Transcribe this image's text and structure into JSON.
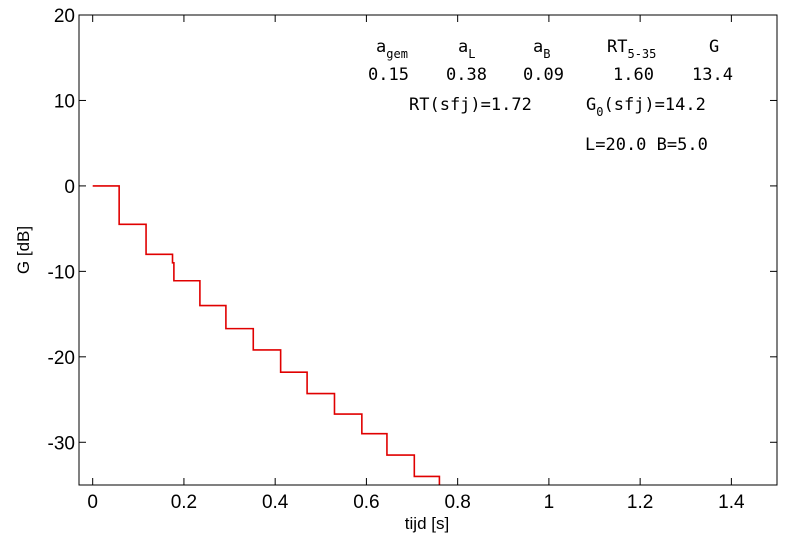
{
  "chart_data": {
    "type": "line",
    "xlabel": "tijd  [s]",
    "ylabel": "G  [dB]",
    "xlim": [
      -0.03,
      1.5
    ],
    "ylim": [
      -35,
      20
    ],
    "xticks": [
      0,
      0.2,
      0.4,
      0.6,
      0.8,
      1,
      1.2,
      1.4
    ],
    "xtick_labels": [
      "0",
      "0.2",
      "0.4",
      "0.6",
      "0.8",
      "1",
      "1.2",
      "1.4"
    ],
    "yticks": [
      -30,
      -20,
      -10,
      0,
      10,
      20
    ],
    "ytick_labels": [
      "-30",
      "-20",
      "-10",
      "0",
      "10",
      "20"
    ],
    "grid": false,
    "series": [
      {
        "color": "#000000",
        "step": true,
        "x": [
          0.0,
          0.0,
          0.0,
          0.0,
          0.0,
          0.0,
          0.0,
          0.0,
          0.0,
          0.0,
          0.0,
          0.0,
          0.0,
          0.0,
          0.0,
          0.0,
          0.0,
          0.0,
          0.0,
          0.0,
          0.0,
          0.0,
          0.0,
          0.0,
          0.0,
          0.0,
          0.0,
          0.0,
          0.0,
          0.0,
          0.0,
          0.0,
          0.0,
          0.0,
          0.0,
          0.0,
          0.0,
          0.0,
          0.0,
          0.0,
          0.0,
          0.0,
          0.0,
          0.0,
          0.0,
          0.0,
          0.0,
          0.0,
          0.0,
          0.0
        ],
        "y": [
          0.0,
          0.0,
          0.0,
          0.0,
          0.0,
          0.0,
          0.0,
          0.0,
          0.0,
          0.0,
          0.0,
          0.0,
          0.0,
          0.0,
          0.0,
          0.0,
          0.0,
          0.0,
          0.0,
          0.0,
          0.0,
          0.0,
          0.0,
          0.0,
          0.0,
          0.0,
          0.0,
          0.0,
          0.0,
          0.0,
          0.0,
          0.0,
          0.0,
          0.0,
          0.0,
          0.0,
          0.0,
          0.0,
          0.0,
          0.0,
          0.0,
          0.0,
          0.0,
          0.0,
          0.0,
          0.0,
          0.0,
          0.0,
          0.0,
          0.0
        ]
      },
      {
        "color": "#0000ff",
        "step": true,
        "x": [
          0.0,
          0.0,
          0.0,
          0.0,
          0.0,
          0.0,
          0.0,
          0.0,
          0.0,
          0.0,
          0.0,
          0.0,
          0.0,
          0.0,
          0.0,
          0.0,
          0.0,
          0.0,
          0.0,
          0.0,
          0.0,
          0.0,
          0.0,
          0.0,
          0.0,
          0.0,
          0.0,
          0.0,
          0.0,
          0.0,
          0.0,
          0.0,
          0.0,
          0.0,
          0.0,
          0.0,
          0.0,
          0.0,
          0.0,
          0.0,
          0.0,
          0.0,
          0.0,
          0.0,
          0.0,
          0.0,
          0.0,
          0.0,
          0.0,
          0.0
        ],
        "y": [
          0.0,
          0.0,
          0.0,
          0.0,
          0.0,
          0.0,
          0.0,
          0.0,
          0.0,
          0.0,
          0.0,
          0.0,
          0.0,
          0.0,
          0.0,
          0.0,
          0.0,
          0.0,
          0.0,
          0.0,
          0.0,
          0.0,
          0.0,
          0.0,
          0.0,
          0.0,
          0.0,
          0.0,
          0.0,
          0.0,
          0.0,
          0.0,
          0.0,
          0.0,
          0.0,
          0.0,
          0.0,
          0.0,
          0.0,
          0.0,
          0.0,
          0.0,
          0.0,
          0.0,
          0.0,
          0.0,
          0.0,
          0.0,
          0.0,
          0.0
        ]
      },
      {
        "color": "#e00000",
        "step": true,
        "x": [
          0,
          0.058,
          0.058,
          0.117,
          0.117,
          0.175,
          0.175,
          0.178,
          0.178,
          0.235,
          0.235,
          0.292,
          0.292,
          0.352,
          0.352,
          0.412,
          0.412,
          0.47,
          0.47,
          0.53,
          0.53,
          0.59,
          0.59,
          0.645,
          0.645,
          0.705,
          0.705,
          0.76,
          0.76
        ],
        "y": [
          0,
          0,
          -4.5,
          -4.5,
          -8,
          -8,
          -9,
          -9,
          -11.1,
          -11.1,
          -14,
          -14,
          -16.7,
          -16.7,
          -19.2,
          -19.2,
          -21.8,
          -21.8,
          -24.3,
          -24.3,
          -26.7,
          -26.7,
          -29,
          -29,
          -31.5,
          -31.5,
          -34,
          -34,
          -35
        ]
      }
    ],
    "annotations": {
      "headers": [
        {
          "base": "a",
          "sub": "gem"
        },
        {
          "base": "a",
          "sub": "L"
        },
        {
          "base": "a",
          "sub": "B"
        },
        {
          "base": "RT",
          "sub": "5-35"
        },
        {
          "base": "G",
          "sub": ""
        }
      ],
      "values": [
        "0.15",
        "0.38",
        "0.09",
        "1.60",
        "13.4"
      ],
      "rt_line": "RT(sfj)=1.72",
      "g0_base": "G",
      "g0_sub": "0",
      "g0_rest": "(sfj)=14.2",
      "dims": "L=20.0 B=5.0"
    }
  }
}
